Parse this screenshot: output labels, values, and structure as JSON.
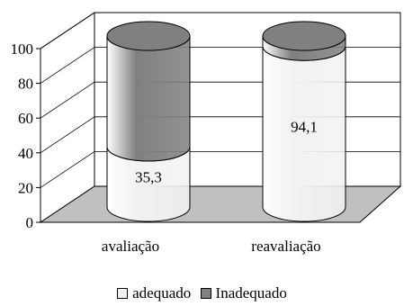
{
  "chart_data": {
    "type": "bar",
    "style": "3d-cylinder-stacked-100",
    "categories": [
      "avaliação",
      "reavaliação"
    ],
    "series": [
      {
        "name": "adequado",
        "values": [
          35.3,
          94.1
        ],
        "color": "#f2f2f2"
      },
      {
        "name": "Inadequado",
        "values": [
          64.7,
          5.9
        ],
        "color": "#808080"
      }
    ],
    "data_labels": {
      "avaliação": "35,3",
      "reavaliação": "94,1"
    },
    "y_ticks": [
      "0",
      "20",
      "40",
      "60",
      "80",
      "100"
    ],
    "ylim": [
      0,
      100
    ],
    "grid": true,
    "legend_position": "bottom"
  },
  "colors": {
    "floor": "#c0c0c0",
    "wall": "#ffffff",
    "axis": "#000000"
  }
}
